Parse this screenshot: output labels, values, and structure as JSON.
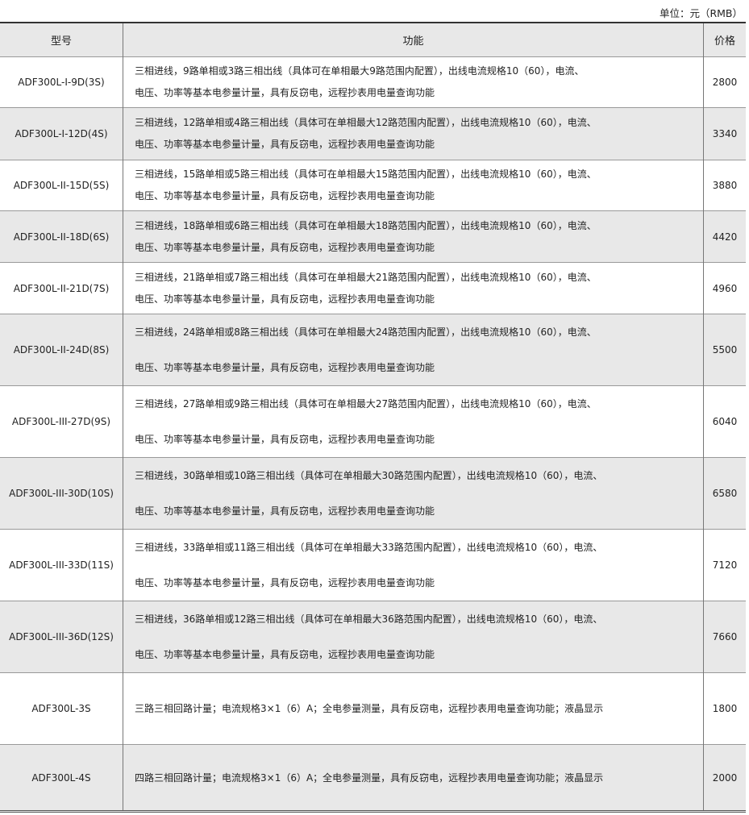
{
  "unit_label": "单位：元（RMB）",
  "table": {
    "headers": [
      "型号",
      "功能",
      "价格"
    ],
    "rows": [
      {
        "model": "ADF300L-I-9D(3S)",
        "function": [
          "三相进线，9路单相或3路三相出线（具体可在单相最大9路范围内配置），出线电流规格10（60），电流、",
          "电压、功率等基本电参量计量，具有反窃电，远程抄表用电量查询功能"
        ],
        "price": "2800"
      },
      {
        "model": "ADF300L-I-12D(4S)",
        "function": [
          "三相进线，12路单相或4路三相出线（具体可在单相最大12路范围内配置），出线电流规格10（60），电流、",
          "电压、功率等基本电参量计量，具有反窃电，远程抄表用电量查询功能"
        ],
        "price": "3340"
      },
      {
        "model": "ADF300L-II-15D(5S)",
        "function": [
          "三相进线，15路单相或5路三相出线（具体可在单相最大15路范围内配置），出线电流规格10（60），电流、",
          "电压、功率等基本电参量计量，具有反窃电，远程抄表用电量查询功能"
        ],
        "price": "3880"
      },
      {
        "model": "ADF300L-II-18D(6S)",
        "function": [
          "三相进线，18路单相或6路三相出线（具体可在单相最大18路范围内配置），出线电流规格10（60），电流、",
          "电压、功率等基本电参量计量，具有反窃电，远程抄表用电量查询功能"
        ],
        "price": "4420"
      },
      {
        "model": "ADF300L-II-21D(7S)",
        "function": [
          "三相进线，21路单相或7路三相出线（具体可在单相最大21路范围内配置），出线电流规格10（60），电流、",
          "电压、功率等基本电参量计量，具有反窃电，远程抄表用电量查询功能"
        ],
        "price": "4960"
      },
      {
        "model": "ADF300L-II-24D(8S)",
        "function": [
          "三相进线，24路单相或8路三相出线（具体可在单相最大24路范围内配置），出线电流规格10（60），电流、",
          "电压、功率等基本电参量计量，具有反窃电，远程抄表用电量查询功能"
        ],
        "price": "5500"
      },
      {
        "model": "ADF300L-III-27D(9S)",
        "function": [
          "三相进线，27路单相或9路三相出线（具体可在单相最大27路范围内配置），出线电流规格10（60），电流、",
          "电压、功率等基本电参量计量，具有反窃电，远程抄表用电量查询功能"
        ],
        "price": "6040"
      },
      {
        "model": "ADF300L-III-30D(10S)",
        "function": [
          "三相进线，30路单相或10路三相出线（具体可在单相最大30路范围内配置），出线电流规格10（60），电流、",
          "电压、功率等基本电参量计量，具有反窃电，远程抄表用电量查询功能"
        ],
        "price": "6580"
      },
      {
        "model": "ADF300L-III-33D(11S)",
        "function": [
          "三相进线，33路单相或11路三相出线（具体可在单相最大33路范围内配置），出线电流规格10（60），电流、",
          "电压、功率等基本电参量计量，具有反窃电，远程抄表用电量查询功能"
        ],
        "price": "7120"
      },
      {
        "model": "ADF300L-III-36D(12S)",
        "function": [
          "三相进线，36路单相或12路三相出线（具体可在单相最大36路范围内配置），出线电流规格10（60），电流、",
          "电压、功率等基本电参量计量，具有反窃电，远程抄表用电量查询功能"
        ],
        "price": "7660"
      },
      {
        "model": "ADF300L-3S",
        "function": [
          "三路三相回路计量；电流规格3×1（6）A；全电参量测量，具有反窃电，远程抄表用电量查询功能；液晶显示"
        ],
        "price": "1800"
      },
      {
        "model": "ADF300L-4S",
        "function": [
          "四路三相回路计量；电流规格3×1（6）A；全电参量测量，具有反窃电，远程抄表用电量查询功能；液晶显示"
        ],
        "price": "2000"
      }
    ]
  },
  "colors": {
    "stripe": "#e8e8e8",
    "border": "#333333"
  }
}
